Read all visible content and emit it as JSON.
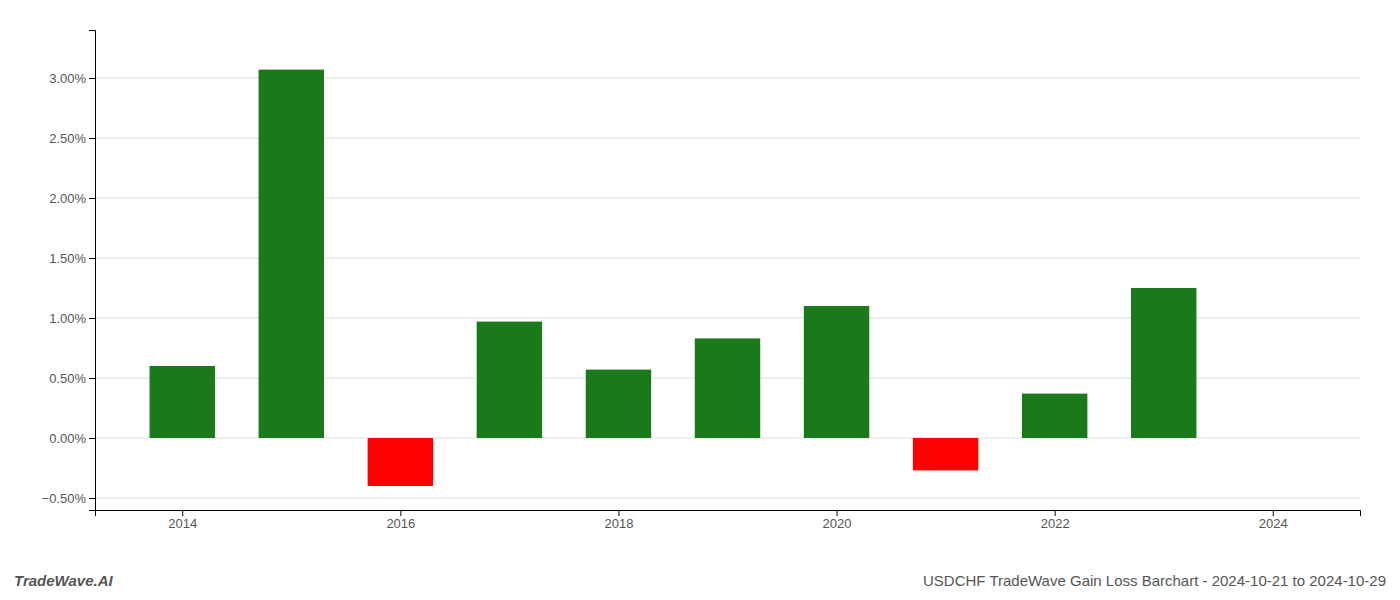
{
  "chart_data": {
    "type": "bar",
    "title": "USDCHF TradeWave Gain Loss Barchart - 2024-10-21 to 2024-10-29",
    "annotations": [
      "TradeWave.AI"
    ],
    "x": [
      2014,
      2015,
      2016,
      2017,
      2018,
      2019,
      2020,
      2021,
      2022,
      2023
    ],
    "values": [
      0.006,
      0.0307,
      -0.004,
      0.0097,
      0.0057,
      0.0083,
      0.011,
      -0.0027,
      0.0037,
      0.0125
    ],
    "colors": [
      "#1a7a1a",
      "#1a7a1a",
      "#ff0000",
      "#1a7a1a",
      "#1a7a1a",
      "#1a7a1a",
      "#1a7a1a",
      "#ff0000",
      "#1a7a1a",
      "#1a7a1a"
    ],
    "xlim": [
      2013.2,
      2024.8
    ],
    "xticks": [
      2014,
      2016,
      2018,
      2020,
      2022,
      2024
    ],
    "ylim": [
      -0.006,
      0.034
    ],
    "yticks": [
      {
        "value": -0.005,
        "label": "−0.50%"
      },
      {
        "value": 0,
        "label": "0.00%"
      },
      {
        "value": 0.005,
        "label": "0.50%"
      },
      {
        "value": 0.01,
        "label": "1.00%"
      },
      {
        "value": 0.015,
        "label": "1.50%"
      },
      {
        "value": 0.02,
        "label": "2.00%"
      },
      {
        "value": 0.025,
        "label": "2.50%"
      },
      {
        "value": 0.03,
        "label": "3.00%"
      }
    ],
    "grid": true
  }
}
